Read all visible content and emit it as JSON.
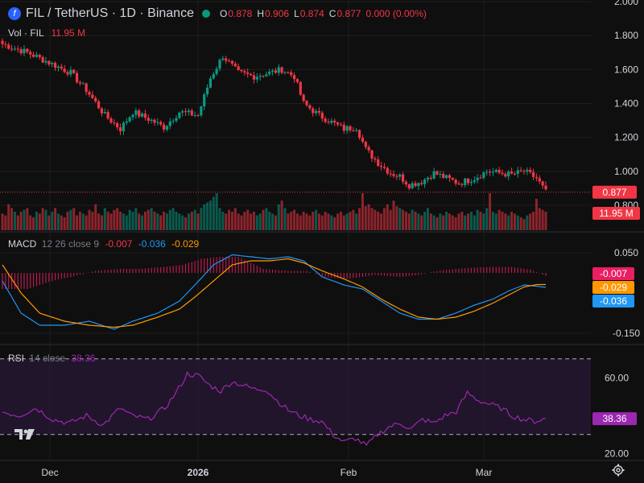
{
  "header": {
    "logo_glyph": "f",
    "symbol": "FIL / TetherUS · 1D · Binance",
    "status_color": "#089981",
    "ohlc": [
      {
        "k": "O",
        "v": "0.878"
      },
      {
        "k": "H",
        "v": "0.906"
      },
      {
        "k": "L",
        "v": "0.874"
      },
      {
        "k": "C",
        "v": "0.877"
      },
      {
        "k": "",
        "v": "0.000 (0.00%)"
      }
    ]
  },
  "volume_legend": {
    "label": "Vol · FIL",
    "value": "11.95 M"
  },
  "macd_legend": {
    "label": "MACD",
    "params": "12 26 close 9",
    "v1": "-0.007",
    "v2": "-0.036",
    "v3": "-0.029"
  },
  "rsi_legend": {
    "label": "RSI",
    "params": "14 close",
    "value": "38.36"
  },
  "colors": {
    "up": "#089981",
    "down": "#f23645",
    "macd_line": "#2196f3",
    "signal_line": "#ff9800",
    "histogram": "#e91e63",
    "rsi_line": "#9c27b0",
    "rsi_band": "#2a1838",
    "background": "#0f0f0f",
    "grid": "#1e1e1e"
  },
  "chart_data": [
    {
      "type": "candlestick",
      "title": "FIL / TetherUS · 1D · Binance",
      "yticks": [
        "2.000",
        "1.800",
        "1.600",
        "1.400",
        "1.200",
        "1.000",
        "0.800"
      ],
      "ylim": [
        0.8,
        2.0
      ],
      "xticks": [
        "Dec",
        "2026",
        "Feb",
        "Mar"
      ],
      "last_price": "0.877",
      "last_price_color": "#f23645",
      "trend": [
        [
          0,
          1.75
        ],
        [
          8,
          1.7
        ],
        [
          14,
          1.65
        ],
        [
          22,
          1.58
        ],
        [
          27,
          1.48
        ],
        [
          33,
          1.33
        ],
        [
          38,
          1.25
        ],
        [
          42,
          1.35
        ],
        [
          48,
          1.3
        ],
        [
          52,
          1.26
        ],
        [
          57,
          1.35
        ],
        [
          63,
          1.33
        ],
        [
          67,
          1.55
        ],
        [
          71,
          1.68
        ],
        [
          76,
          1.58
        ],
        [
          81,
          1.56
        ],
        [
          86,
          1.58
        ],
        [
          90,
          1.6
        ],
        [
          94,
          1.56
        ],
        [
          97,
          1.4
        ],
        [
          102,
          1.33
        ],
        [
          106,
          1.29
        ],
        [
          110,
          1.25
        ],
        [
          114,
          1.26
        ],
        [
          117,
          1.13
        ],
        [
          121,
          1.05
        ],
        [
          125,
          0.99
        ],
        [
          128,
          0.97
        ],
        [
          131,
          0.92
        ],
        [
          135,
          0.94
        ],
        [
          139,
          0.99
        ],
        [
          143,
          0.96
        ],
        [
          147,
          0.93
        ],
        [
          152,
          0.96
        ],
        [
          156,
          1.0
        ],
        [
          160,
          0.99
        ],
        [
          164,
          0.98
        ],
        [
          168,
          1.0
        ],
        [
          172,
          0.96
        ],
        [
          175,
          0.877
        ]
      ]
    },
    {
      "type": "bar",
      "title": "Vol · FIL",
      "value_label": "11.95 M",
      "note": "relative daily volume, last bar 11.95 M",
      "relative": [
        0.45,
        0.4,
        0.7,
        0.6,
        0.5,
        0.4,
        0.5,
        0.55,
        0.6,
        0.4,
        0.35,
        0.5,
        0.45,
        0.6,
        0.55,
        0.4,
        0.5,
        0.6,
        0.45,
        0.4,
        0.35,
        0.5,
        0.55,
        0.6,
        0.4,
        0.5,
        0.45,
        0.4,
        0.55,
        0.5,
        0.7,
        0.45,
        0.4,
        0.6,
        0.5,
        0.45,
        0.55,
        0.6,
        0.5,
        0.45,
        0.4,
        0.55,
        0.5,
        0.6,
        0.45,
        0.4,
        0.5,
        0.55,
        0.6,
        0.5,
        0.45,
        0.4,
        0.5,
        0.45,
        0.55,
        0.6,
        0.5,
        0.45,
        0.4,
        0.35,
        0.45,
        0.5,
        0.55,
        0.45,
        0.6,
        0.7,
        0.75,
        0.8,
        0.9,
        1.0,
        0.6,
        0.5,
        0.45,
        0.55,
        0.5,
        0.6,
        0.45,
        0.4,
        0.5,
        0.55,
        0.45,
        0.5,
        0.4,
        0.45,
        0.55,
        0.6,
        0.5,
        0.45,
        0.4,
        0.7,
        0.8,
        0.6,
        0.45,
        0.5,
        0.55,
        0.45,
        0.4,
        0.5,
        0.45,
        0.4,
        0.5,
        0.55,
        0.45,
        0.4,
        0.5,
        0.45,
        0.4,
        0.35,
        0.45,
        0.5,
        0.4,
        0.45,
        0.5,
        0.55,
        0.45,
        0.6,
        1.0,
        0.65,
        0.7,
        0.6,
        0.55,
        0.5,
        0.45,
        0.6,
        0.7,
        0.55,
        0.8,
        0.65,
        0.6,
        0.55,
        0.5,
        0.45,
        0.55,
        0.5,
        0.45,
        0.4,
        0.5,
        0.6,
        0.45,
        0.4,
        0.35,
        0.45,
        0.4,
        0.5,
        0.45,
        0.4,
        0.35,
        0.45,
        0.5,
        0.4,
        0.45,
        0.5,
        0.4,
        0.55,
        0.5,
        0.45,
        0.6,
        1.0,
        0.5,
        0.45,
        0.55,
        0.5,
        0.45,
        0.4,
        0.5,
        0.45,
        0.4,
        0.35,
        0.3,
        0.4,
        0.45,
        0.5,
        0.85,
        0.6,
        0.55,
        0.5,
        0.45
      ]
    },
    {
      "type": "line",
      "title": "MACD 12 26 close 9",
      "yticks": [
        "0.050",
        "-0.150"
      ],
      "ylim": [
        -0.17,
        0.07
      ],
      "series": [
        {
          "values": [
            [
              0,
              -0.02
            ],
            [
              6,
              -0.1
            ],
            [
              12,
              -0.13
            ],
            [
              20,
              -0.13
            ],
            [
              28,
              -0.12
            ],
            [
              36,
              -0.14
            ],
            [
              42,
              -0.12
            ],
            [
              50,
              -0.1
            ],
            [
              57,
              -0.07
            ],
            [
              62,
              -0.03
            ],
            [
              68,
              0.02
            ],
            [
              74,
              0.045
            ],
            [
              80,
              0.04
            ],
            [
              86,
              0.035
            ],
            [
              92,
              0.04
            ],
            [
              97,
              0.03
            ],
            [
              103,
              -0.01
            ],
            [
              110,
              -0.03
            ],
            [
              116,
              -0.04
            ],
            [
              122,
              -0.07
            ],
            [
              128,
              -0.1
            ],
            [
              134,
              -0.115
            ],
            [
              140,
              -0.115
            ],
            [
              146,
              -0.1
            ],
            [
              152,
              -0.08
            ],
            [
              158,
              -0.065
            ],
            [
              163,
              -0.045
            ],
            [
              168,
              -0.03
            ],
            [
              172,
              -0.033
            ],
            [
              175,
              -0.036
            ]
          ]
        },
        {
          "values": [
            [
              0,
              0.02
            ],
            [
              6,
              -0.05
            ],
            [
              12,
              -0.1
            ],
            [
              20,
              -0.12
            ],
            [
              28,
              -0.13
            ],
            [
              36,
              -0.135
            ],
            [
              42,
              -0.13
            ],
            [
              50,
              -0.11
            ],
            [
              57,
              -0.09
            ],
            [
              62,
              -0.06
            ],
            [
              68,
              -0.02
            ],
            [
              74,
              0.02
            ],
            [
              80,
              0.03
            ],
            [
              86,
              0.03
            ],
            [
              92,
              0.035
            ],
            [
              97,
              0.025
            ],
            [
              103,
              0.005
            ],
            [
              110,
              -0.015
            ],
            [
              116,
              -0.035
            ],
            [
              122,
              -0.065
            ],
            [
              128,
              -0.09
            ],
            [
              134,
              -0.11
            ],
            [
              140,
              -0.115
            ],
            [
              146,
              -0.11
            ],
            [
              152,
              -0.095
            ],
            [
              158,
              -0.075
            ],
            [
              163,
              -0.055
            ],
            [
              168,
              -0.035
            ],
            [
              172,
              -0.029
            ],
            [
              175,
              -0.029
            ]
          ]
        }
      ],
      "histogram": [
        [
          0,
          -0.04
        ],
        [
          8,
          -0.04
        ],
        [
          16,
          -0.02
        ],
        [
          22,
          -0.01
        ],
        [
          30,
          0.005
        ],
        [
          38,
          0.01
        ],
        [
          44,
          0.01
        ],
        [
          52,
          0.015
        ],
        [
          58,
          0.02
        ],
        [
          64,
          0.035
        ],
        [
          70,
          0.04
        ],
        [
          76,
          0.04
        ],
        [
          84,
          0.01
        ],
        [
          92,
          0.005
        ],
        [
          98,
          0.005
        ],
        [
          104,
          -0.01
        ],
        [
          110,
          -0.015
        ],
        [
          116,
          -0.01
        ],
        [
          120,
          -0.005
        ],
        [
          128,
          -0.01
        ],
        [
          134,
          -0.005
        ],
        [
          140,
          0.005
        ],
        [
          146,
          0.01
        ],
        [
          152,
          0.013
        ],
        [
          158,
          0.015
        ],
        [
          164,
          0.015
        ],
        [
          170,
          0.008
        ],
        [
          175,
          -0.007
        ]
      ]
    },
    {
      "type": "line",
      "title": "RSI 14 close",
      "yticks": [
        "60.00",
        "20.00"
      ],
      "ylim": [
        18,
        75
      ],
      "band": [
        30,
        70
      ],
      "values": [
        [
          0,
          42
        ],
        [
          6,
          40
        ],
        [
          12,
          44
        ],
        [
          18,
          38
        ],
        [
          24,
          36
        ],
        [
          30,
          40
        ],
        [
          36,
          35
        ],
        [
          42,
          44
        ],
        [
          46,
          40
        ],
        [
          52,
          38
        ],
        [
          58,
          44
        ],
        [
          62,
          52
        ],
        [
          66,
          62
        ],
        [
          70,
          61
        ],
        [
          74,
          56
        ],
        [
          78,
          53
        ],
        [
          82,
          58
        ],
        [
          86,
          56
        ],
        [
          90,
          54
        ],
        [
          94,
          54
        ],
        [
          98,
          48
        ],
        [
          102,
          43
        ],
        [
          106,
          40
        ],
        [
          110,
          38
        ],
        [
          114,
          37
        ],
        [
          118,
          30
        ],
        [
          122,
          26
        ],
        [
          126,
          28
        ],
        [
          130,
          24
        ],
        [
          134,
          30
        ],
        [
          138,
          34
        ],
        [
          142,
          36
        ],
        [
          146,
          33
        ],
        [
          150,
          38
        ],
        [
          154,
          36
        ],
        [
          158,
          40
        ],
        [
          162,
          42
        ],
        [
          166,
          52
        ],
        [
          170,
          48
        ],
        [
          174,
          46
        ],
        [
          178,
          44
        ],
        [
          182,
          40
        ],
        [
          186,
          38
        ],
        [
          190,
          37
        ],
        [
          194,
          38.36
        ]
      ],
      "value_label": "38.36"
    }
  ]
}
